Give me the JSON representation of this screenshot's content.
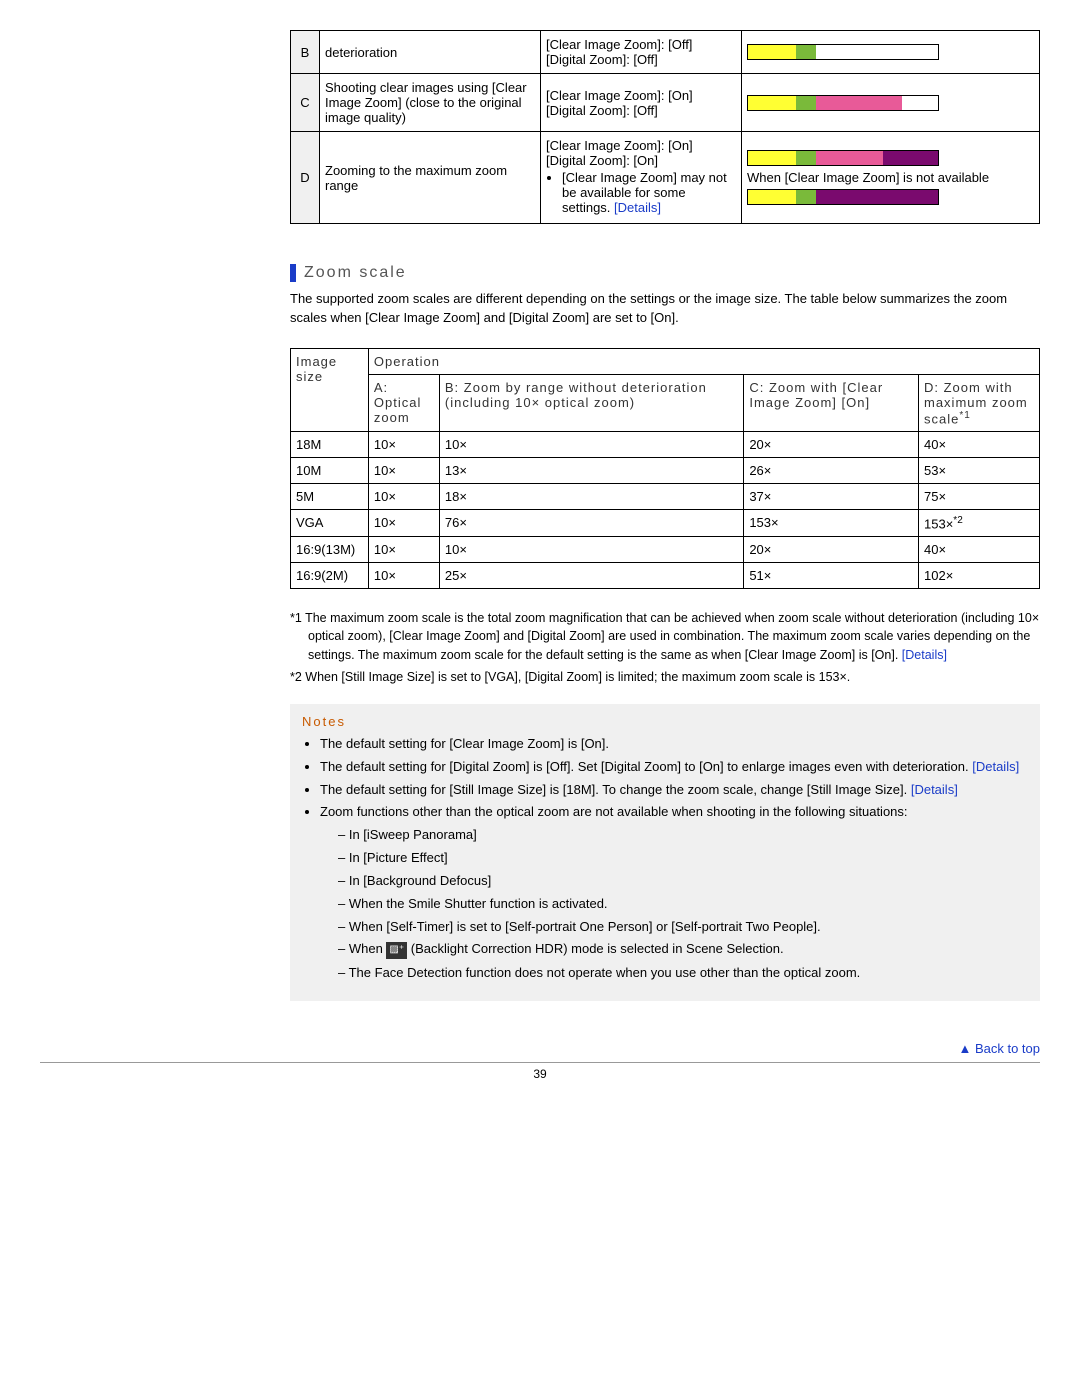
{
  "feature_table": {
    "rows": [
      {
        "letter": "B",
        "desc": "deterioration",
        "settings_lines": [
          "[Clear Image Zoom]: [Off]",
          "[Digital Zoom]: [Off]"
        ],
        "bars": [
          [
            [
              "yellow",
              50
            ],
            [
              "green",
              22
            ],
            [
              "white",
              128
            ]
          ]
        ]
      },
      {
        "letter": "C",
        "desc": "Shooting clear images using [Clear Image Zoom] (close to the original image quality)",
        "settings_lines": [
          "[Clear Image Zoom]: [On]",
          "[Digital Zoom]: [Off]"
        ],
        "bars": [
          [
            [
              "yellow",
              50
            ],
            [
              "green",
              22
            ],
            [
              "pink",
              90
            ],
            [
              "white",
              38
            ]
          ]
        ]
      },
      {
        "letter": "D",
        "desc": "Zooming to the maximum zoom range",
        "settings_lines": [
          "[Clear Image Zoom]: [On]",
          "[Digital Zoom]: [On]"
        ],
        "settings_bullets": [
          "[Clear Image Zoom] may not be available for some settings."
        ],
        "settings_details": true,
        "bars": [
          [
            [
              "yellow",
              50
            ],
            [
              "green",
              22
            ],
            [
              "pink",
              70
            ],
            [
              "purple",
              58
            ]
          ]
        ],
        "bar_note": "When [Clear Image Zoom] is not available",
        "bars2": [
          [
            [
              "yellow",
              50
            ],
            [
              "green",
              22
            ],
            [
              "purple",
              128
            ]
          ]
        ]
      }
    ]
  },
  "section_title": "Zoom scale",
  "intro": "The supported zoom scales are different depending on the settings or the image size. The table below summarizes the zoom scales when [Clear Image Zoom] and [Digital Zoom] are set to [On].",
  "scale_table": {
    "header_operation": "Operation",
    "header_imgsize": "Image size",
    "header_a": "A: Optical zoom",
    "header_b": "B: Zoom by range without deterioration (including 10× optical zoom)",
    "header_c": "C: Zoom with [Clear Image Zoom] [On]",
    "header_d_prefix": "D: Zoom with maximum zoom scale",
    "header_d_sup": "*1",
    "rows": [
      {
        "size": "18M",
        "a": "10×",
        "b": "10×",
        "c": "20×",
        "d": "40×"
      },
      {
        "size": "10M",
        "a": "10×",
        "b": "13×",
        "c": "26×",
        "d": "53×"
      },
      {
        "size": "5M",
        "a": "10×",
        "b": "18×",
        "c": "37×",
        "d": "75×"
      },
      {
        "size": "VGA",
        "a": "10×",
        "b": "76×",
        "c": "153×",
        "d": "153×",
        "d_sup": "*2"
      },
      {
        "size": "16:9(13M)",
        "a": "10×",
        "b": "10×",
        "c": "20×",
        "d": "40×"
      },
      {
        "size": "16:9(2M)",
        "a": "10×",
        "b": "25×",
        "c": "51×",
        "d": "102×"
      }
    ]
  },
  "footnotes": {
    "f1": "*1 The maximum zoom scale is the total zoom magnification that can be achieved when zoom scale without deterioration (including 10× optical zoom), [Clear Image Zoom] and [Digital Zoom] are used in combination. The maximum zoom scale varies depending on the settings. The maximum zoom scale for the default setting is the same as when [Clear Image Zoom] is [On].",
    "f2": "*2 When [Still Image Size] is set to [VGA], [Digital Zoom] is limited; the maximum zoom scale is 153×."
  },
  "notes": {
    "title": "Notes",
    "items": [
      "The default setting for [Clear Image Zoom] is [On].",
      "The default setting for [Digital Zoom] is [Off]. Set [Digital Zoom] to [On] to enlarge images even with deterioration.",
      "The default setting for [Still Image Size] is [18M]. To change the zoom scale, change [Still Image Size].",
      "Zoom functions other than the optical zoom are not available when shooting in the following situations:"
    ],
    "subitems": [
      "In [iSweep Panorama]",
      "In [Picture Effect]",
      "In [Background Defocus]",
      "When the Smile Shutter function is activated.",
      "When [Self-Timer] is set to [Self-portrait One Person] or [Self-portrait Two People].",
      "",
      "The Face Detection function does not operate when you use other than the optical zoom."
    ],
    "hdr_line": " (Backlight Correction HDR) mode is selected in Scene Selection."
  },
  "details_label": "[Details]",
  "back_to_top": "Back to top",
  "page_number": "39"
}
